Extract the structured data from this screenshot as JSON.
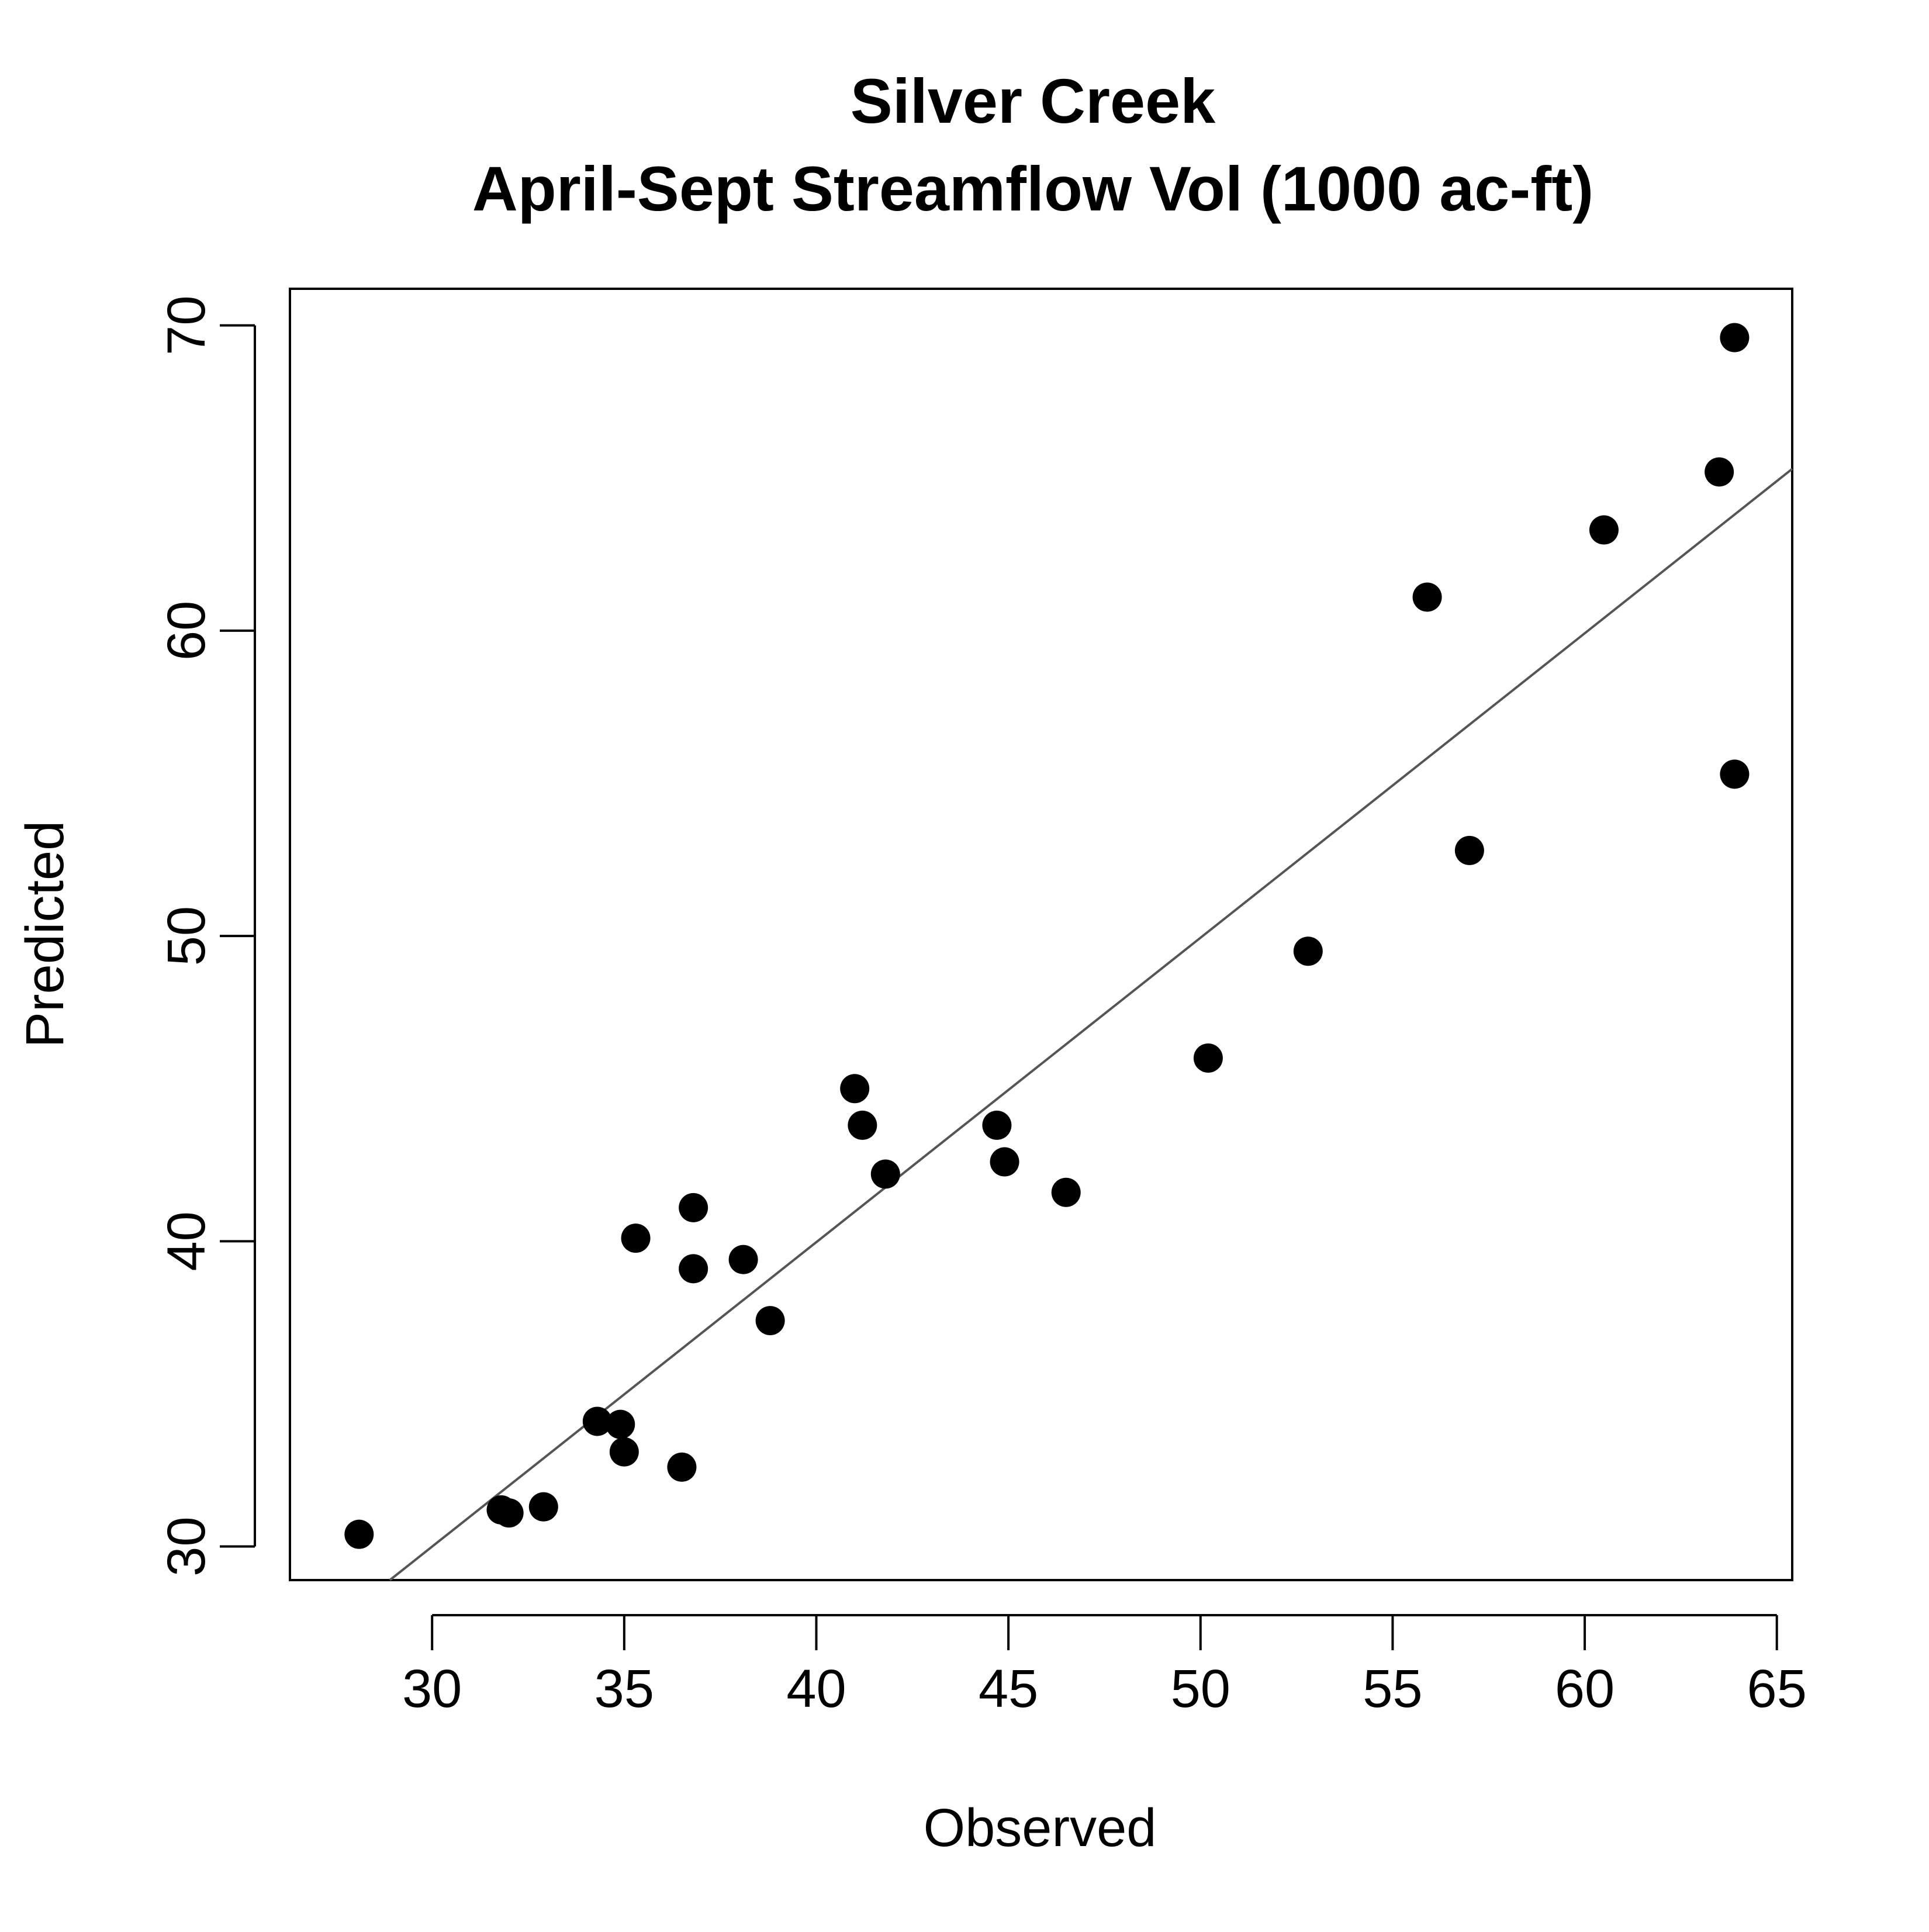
{
  "chart_data": {
    "type": "scatter",
    "title": "Silver Creek",
    "subtitle": "April-Sept Streamflow Vol (1000 ac-ft)",
    "xlabel": "Observed",
    "ylabel": "Predicted",
    "xlim": [
      26.3,
      65.4
    ],
    "ylim": [
      28.9,
      71.2
    ],
    "xticks": [
      30,
      35,
      40,
      45,
      50,
      55,
      60,
      65
    ],
    "yticks": [
      30,
      40,
      50,
      60,
      70
    ],
    "grid": false,
    "legend": "none",
    "point_color": "#000000",
    "line_color": "#555555",
    "points": [
      {
        "x": 28.1,
        "y": 30.4
      },
      {
        "x": 31.8,
        "y": 31.2
      },
      {
        "x": 32.0,
        "y": 31.1
      },
      {
        "x": 32.9,
        "y": 31.3
      },
      {
        "x": 34.3,
        "y": 34.1
      },
      {
        "x": 34.9,
        "y": 34.0
      },
      {
        "x": 35.0,
        "y": 33.1
      },
      {
        "x": 35.3,
        "y": 40.1
      },
      {
        "x": 36.5,
        "y": 32.6
      },
      {
        "x": 36.8,
        "y": 39.1
      },
      {
        "x": 36.8,
        "y": 41.1
      },
      {
        "x": 38.1,
        "y": 39.4
      },
      {
        "x": 38.8,
        "y": 37.4
      },
      {
        "x": 41.0,
        "y": 45.0
      },
      {
        "x": 41.2,
        "y": 43.8
      },
      {
        "x": 41.8,
        "y": 42.2
      },
      {
        "x": 44.7,
        "y": 43.8
      },
      {
        "x": 44.9,
        "y": 42.6
      },
      {
        "x": 46.5,
        "y": 41.6
      },
      {
        "x": 50.2,
        "y": 46.0
      },
      {
        "x": 52.8,
        "y": 49.5
      },
      {
        "x": 55.9,
        "y": 61.1
      },
      {
        "x": 57.0,
        "y": 52.8
      },
      {
        "x": 60.5,
        "y": 63.3
      },
      {
        "x": 63.5,
        "y": 65.2
      },
      {
        "x": 63.9,
        "y": 69.6
      },
      {
        "x": 63.9,
        "y": 55.3
      }
    ],
    "fit_line": {
      "x": [
        28.9,
        65.4
      ],
      "y": [
        28.9,
        65.3
      ]
    }
  }
}
